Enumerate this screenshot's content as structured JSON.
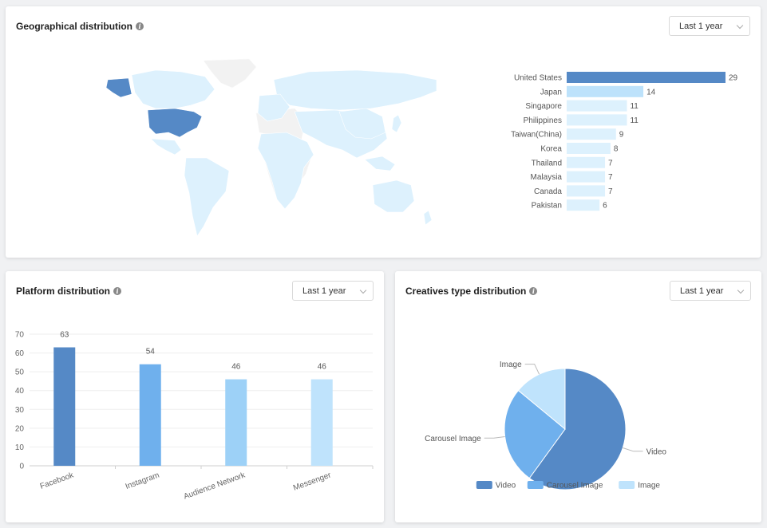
{
  "geo": {
    "title": "Geographical distribution",
    "dropdown": "Last 1 year",
    "chart_data": {
      "type": "bar",
      "orientation": "horizontal",
      "categories": [
        "United States",
        "Japan",
        "Singapore",
        "Philippines",
        "Taiwan(China)",
        "Korea",
        "Thailand",
        "Malaysia",
        "Canada",
        "Pakistan"
      ],
      "values": [
        29,
        14,
        11,
        11,
        9,
        8,
        7,
        7,
        7,
        6
      ],
      "colors": [
        "#5589c6",
        "#bde2fb",
        "#ddf1fd",
        "#ddf1fd",
        "#ddf1fd",
        "#ddf1fd",
        "#ddf1fd",
        "#ddf1fd",
        "#ddf1fd",
        "#ddf1fd"
      ]
    }
  },
  "platform": {
    "title": "Platform distribution",
    "dropdown": "Last 1 year",
    "chart_data": {
      "type": "bar",
      "categories": [
        "Facebook",
        "Instagram",
        "Audience Network",
        "Messenger"
      ],
      "values": [
        63,
        54,
        46,
        46
      ],
      "colors": [
        "#5589c6",
        "#6fb0ed",
        "#9dd1f7",
        "#bfe3fc"
      ],
      "ylim": [
        0,
        70
      ],
      "yticks": [
        0,
        10,
        20,
        30,
        40,
        50,
        60,
        70
      ]
    }
  },
  "creatives": {
    "title": "Creatives type distribution",
    "dropdown": "Last 1 year",
    "chart_data": {
      "type": "pie",
      "labels": [
        "Video",
        "Carousel Image",
        "Image"
      ],
      "values": [
        60,
        26,
        14
      ],
      "colors": [
        "#5589c6",
        "#6fb0ed",
        "#bfe3fc"
      ],
      "legend_position": "bottom"
    }
  }
}
